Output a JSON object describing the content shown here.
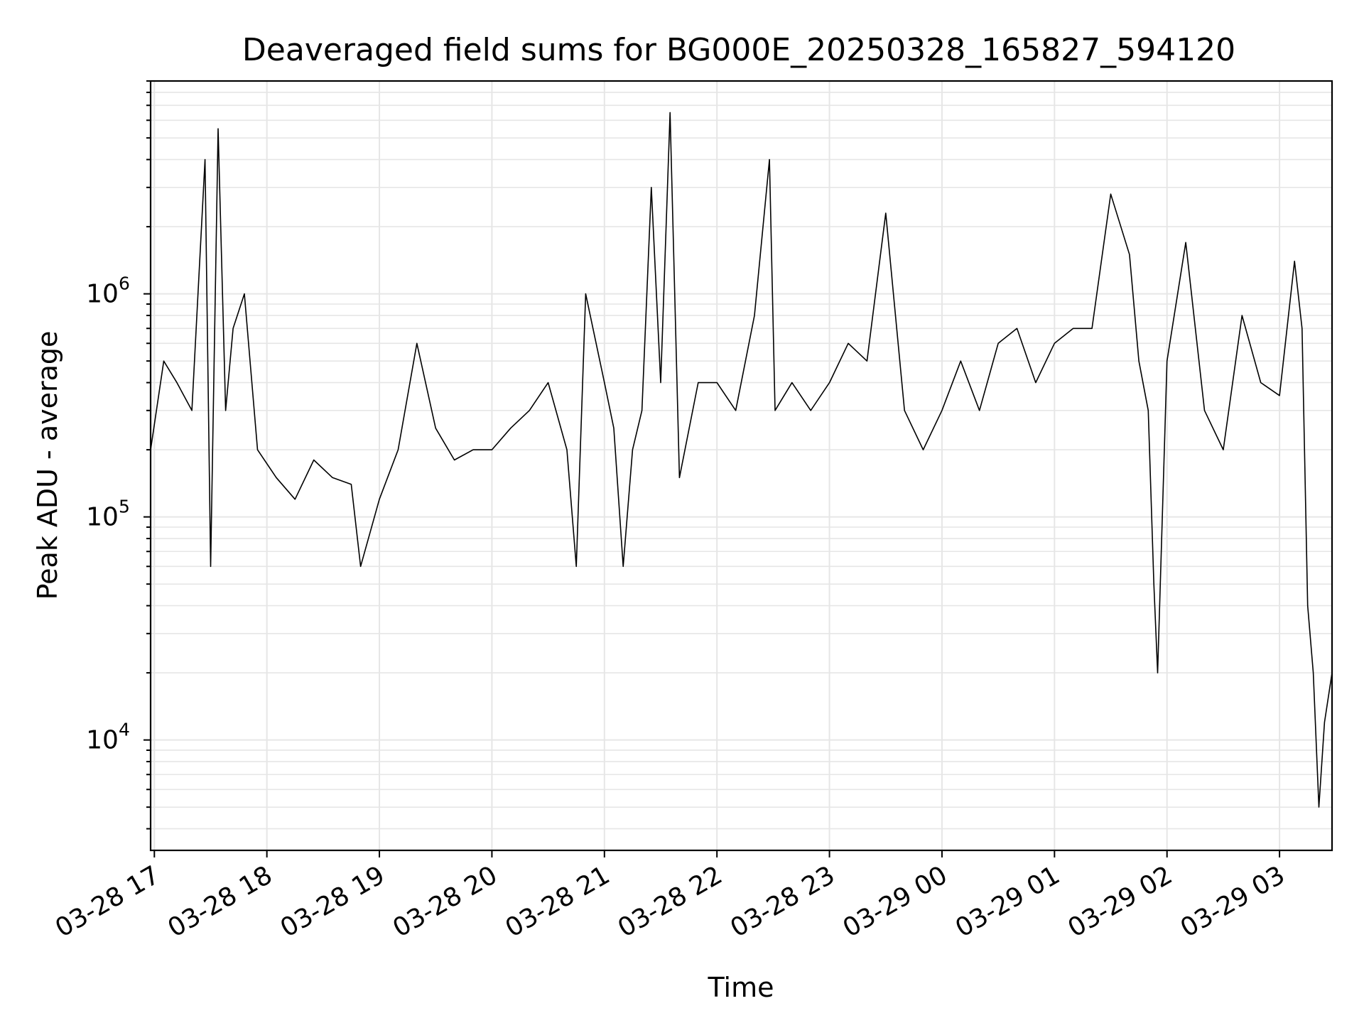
{
  "chart_data": {
    "type": "line",
    "title": "Deaveraged field sums for BG000E_20250328_165827_594120",
    "xlabel": "Time",
    "ylabel": "Peak ADU - average",
    "y_scale": "log",
    "x_range": [
      "2025-03-28 16:58",
      "2025-03-29 03:28"
    ],
    "ylim": [
      3200,
      9000000
    ],
    "grid": true,
    "grid_color": "#e6e6e6",
    "line_color": "#000000",
    "x_tick_labels": [
      "03-28 17",
      "03-28 18",
      "03-28 19",
      "03-28 20",
      "03-28 21",
      "03-28 22",
      "03-28 23",
      "03-29 00",
      "03-29 01",
      "03-29 02",
      "03-29 03"
    ],
    "x_ticks": [
      "2025-03-28 17:00",
      "2025-03-28 18:00",
      "2025-03-28 19:00",
      "2025-03-28 20:00",
      "2025-03-28 21:00",
      "2025-03-28 22:00",
      "2025-03-28 23:00",
      "2025-03-29 00:00",
      "2025-03-29 01:00",
      "2025-03-29 02:00",
      "2025-03-29 03:00"
    ],
    "y_ticks": [
      {
        "value": 10000,
        "base": "10",
        "exp": "4"
      },
      {
        "value": 100000,
        "base": "10",
        "exp": "5"
      },
      {
        "value": 1000000,
        "base": "10",
        "exp": "6"
      }
    ],
    "series": [
      {
        "x": [
          "2025-03-28 16:58",
          "2025-03-28 17:05",
          "2025-03-28 17:12",
          "2025-03-28 17:20",
          "2025-03-28 17:27",
          "2025-03-28 17:30",
          "2025-03-28 17:34",
          "2025-03-28 17:38",
          "2025-03-28 17:42",
          "2025-03-28 17:48",
          "2025-03-28 17:55",
          "2025-03-28 18:05",
          "2025-03-28 18:15",
          "2025-03-28 18:25",
          "2025-03-28 18:35",
          "2025-03-28 18:45",
          "2025-03-28 18:50",
          "2025-03-28 19:00",
          "2025-03-28 19:10",
          "2025-03-28 19:20",
          "2025-03-28 19:30",
          "2025-03-28 19:40",
          "2025-03-28 19:50",
          "2025-03-28 20:00",
          "2025-03-28 20:10",
          "2025-03-28 20:20",
          "2025-03-28 20:30",
          "2025-03-28 20:40",
          "2025-03-28 20:45",
          "2025-03-28 20:50",
          "2025-03-28 21:00",
          "2025-03-28 21:05",
          "2025-03-28 21:10",
          "2025-03-28 21:15",
          "2025-03-28 21:20",
          "2025-03-28 21:25",
          "2025-03-28 21:30",
          "2025-03-28 21:35",
          "2025-03-28 21:40",
          "2025-03-28 21:50",
          "2025-03-28 22:00",
          "2025-03-28 22:10",
          "2025-03-28 22:20",
          "2025-03-28 22:28",
          "2025-03-28 22:31",
          "2025-03-28 22:40",
          "2025-03-28 22:50",
          "2025-03-28 23:00",
          "2025-03-28 23:10",
          "2025-03-28 23:20",
          "2025-03-28 23:30",
          "2025-03-28 23:40",
          "2025-03-28 23:50",
          "2025-03-29 00:00",
          "2025-03-29 00:10",
          "2025-03-29 00:20",
          "2025-03-29 00:30",
          "2025-03-29 00:40",
          "2025-03-29 00:50",
          "2025-03-29 01:00",
          "2025-03-29 01:10",
          "2025-03-29 01:20",
          "2025-03-29 01:30",
          "2025-03-29 01:40",
          "2025-03-29 01:45",
          "2025-03-29 01:50",
          "2025-03-29 01:53",
          "2025-03-29 01:55",
          "2025-03-29 02:00",
          "2025-03-29 02:10",
          "2025-03-29 02:20",
          "2025-03-29 02:30",
          "2025-03-29 02:40",
          "2025-03-29 02:50",
          "2025-03-29 03:00",
          "2025-03-29 03:08",
          "2025-03-29 03:12",
          "2025-03-29 03:15",
          "2025-03-29 03:18",
          "2025-03-29 03:21",
          "2025-03-29 03:24",
          "2025-03-29 03:28"
        ],
        "y": [
          200000,
          500000,
          400000,
          300000,
          4000000,
          60000,
          5500000,
          300000,
          700000,
          1000000,
          200000,
          150000,
          120000,
          180000,
          150000,
          140000,
          60000,
          120000,
          200000,
          600000,
          250000,
          180000,
          200000,
          200000,
          250000,
          300000,
          400000,
          200000,
          60000,
          1000000,
          400000,
          250000,
          60000,
          200000,
          300000,
          3000000,
          400000,
          6500000,
          150000,
          400000,
          400000,
          300000,
          800000,
          4000000,
          300000,
          400000,
          300000,
          400000,
          600000,
          500000,
          2300000,
          300000,
          200000,
          300000,
          500000,
          300000,
          600000,
          700000,
          400000,
          600000,
          700000,
          700000,
          2800000,
          1500000,
          500000,
          300000,
          50000,
          20000,
          500000,
          1700000,
          300000,
          200000,
          800000,
          400000,
          350000,
          1400000,
          700000,
          40000,
          20000,
          5000,
          12000,
          20000
        ]
      }
    ]
  }
}
